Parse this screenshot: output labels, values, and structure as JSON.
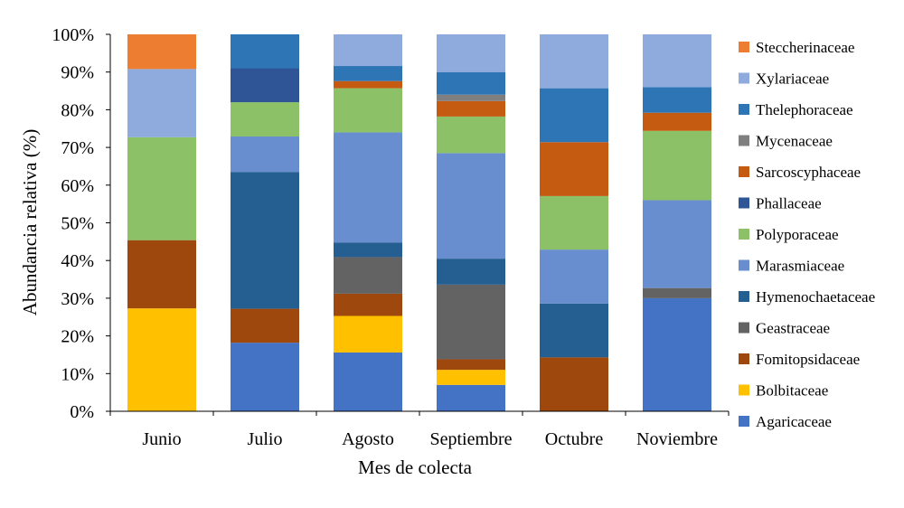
{
  "chart_data": {
    "type": "bar",
    "stacked": true,
    "percent_stacked": true,
    "categories": [
      "Junio",
      "Julio",
      "Agosto",
      "Septiembre",
      "Octubre",
      "Noviembre"
    ],
    "series": [
      {
        "name": "Agaricaceae",
        "color": "#4472C4",
        "values": [
          0,
          18.2,
          15.6,
          7.0,
          0,
          30.0
        ]
      },
      {
        "name": "Bolbitaceae",
        "color": "#FFC000",
        "values": [
          27.3,
          0,
          9.7,
          4.0,
          0,
          0
        ]
      },
      {
        "name": "Fomitopsidaceae",
        "color": "#9E480E",
        "values": [
          18.1,
          9.0,
          5.9,
          2.8,
          14.3,
          0
        ]
      },
      {
        "name": "Geastraceae",
        "color": "#636363",
        "values": [
          0,
          0,
          9.7,
          19.8,
          0,
          2.7
        ]
      },
      {
        "name": "Hymenochaetaceae",
        "color": "#255E91",
        "values": [
          0,
          36.3,
          3.9,
          6.9,
          14.3,
          0
        ]
      },
      {
        "name": "Marasmiaceae",
        "color": "#698ED0",
        "values": [
          0,
          9.4,
          29.2,
          28.0,
          14.3,
          23.3
        ]
      },
      {
        "name": "Polyporaceae",
        "color": "#8CC168",
        "values": [
          27.3,
          9.1,
          11.7,
          9.7,
          14.2,
          18.4
        ]
      },
      {
        "name": "Phallaceae",
        "color": "#2F5597",
        "values": [
          0,
          9.0,
          0,
          0,
          0,
          0
        ]
      },
      {
        "name": "Sarcoscyphaceae",
        "color": "#C55A11",
        "values": [
          0,
          0,
          1.9,
          4.1,
          14.3,
          4.8
        ]
      },
      {
        "name": "Mycenaceae",
        "color": "#7F7F7F",
        "values": [
          0,
          0,
          0,
          1.7,
          0,
          0
        ]
      },
      {
        "name": "Thelephoraceae",
        "color": "#2E75B6",
        "values": [
          0,
          9.0,
          4.0,
          6.0,
          14.3,
          6.8
        ]
      },
      {
        "name": "Xylariaceae",
        "color": "#8FAADC",
        "values": [
          18.1,
          0,
          8.4,
          10.0,
          14.3,
          14.0
        ]
      },
      {
        "name": "Steccherinaceae",
        "color": "#ED7D31",
        "values": [
          9.2,
          0,
          0,
          0,
          0,
          0
        ]
      }
    ],
    "ylim": [
      0,
      100
    ],
    "yticks": [
      "0%",
      "10%",
      "20%",
      "30%",
      "40%",
      "50%",
      "60%",
      "70%",
      "80%",
      "90%",
      "100%"
    ],
    "xlabel": "Mes de colecta",
    "ylabel": "Abundancia relativa (%)",
    "title": "",
    "grid": false,
    "legend_position": "right"
  }
}
